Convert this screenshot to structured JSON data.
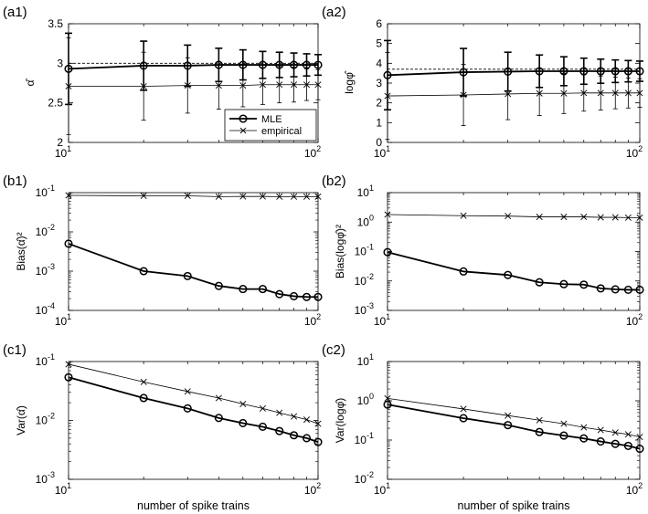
{
  "figure": {
    "xlabel": "number of spike trains"
  },
  "legend": {
    "entries": [
      {
        "label": "MLE",
        "marker": "circle",
        "line": "thick"
      },
      {
        "label": "empirical",
        "marker": "x",
        "line": "thin"
      }
    ]
  },
  "chart_data": [
    {
      "id": "a1",
      "label": "(a1)",
      "type": "line",
      "yscale": "linear",
      "ylabel": "α̂",
      "xlim": [
        10,
        100
      ],
      "ylim": [
        2,
        3.5
      ],
      "yticks": [
        {
          "v": 2,
          "t": "2"
        },
        {
          "v": 2.5,
          "t": "2.5"
        },
        {
          "v": 3,
          "t": "3"
        },
        {
          "v": 3.5,
          "t": "3.5"
        }
      ],
      "x": [
        10,
        20,
        30,
        40,
        50,
        60,
        70,
        80,
        90,
        100
      ],
      "true_value": 3.0,
      "series": [
        {
          "name": "MLE",
          "values": [
            2.93,
            2.97,
            2.97,
            2.98,
            2.98,
            2.98,
            2.98,
            2.98,
            2.98,
            2.98
          ],
          "err": [
            0.45,
            0.31,
            0.26,
            0.21,
            0.19,
            0.17,
            0.16,
            0.15,
            0.14,
            0.13
          ]
        },
        {
          "name": "empirical",
          "values": [
            2.71,
            2.71,
            2.72,
            2.72,
            2.72,
            2.73,
            2.73,
            2.73,
            2.73,
            2.73
          ],
          "err": [
            0.61,
            0.43,
            0.35,
            0.3,
            0.27,
            0.25,
            0.23,
            0.22,
            0.2,
            0.19
          ]
        }
      ]
    },
    {
      "id": "a2",
      "label": "(a2)",
      "type": "line",
      "yscale": "linear",
      "ylabel": "logφ̂",
      "xlim": [
        10,
        100
      ],
      "ylim": [
        0,
        6
      ],
      "yticks": [
        {
          "v": 0,
          "t": "0"
        },
        {
          "v": 1,
          "t": "1"
        },
        {
          "v": 2,
          "t": "2"
        },
        {
          "v": 3,
          "t": "3"
        },
        {
          "v": 4,
          "t": "4"
        },
        {
          "v": 5,
          "t": "5"
        },
        {
          "v": 6,
          "t": "6"
        }
      ],
      "x": [
        10,
        20,
        30,
        40,
        50,
        60,
        70,
        80,
        90,
        100
      ],
      "true_value": 3.7,
      "series": [
        {
          "name": "MLE",
          "values": [
            3.4,
            3.55,
            3.58,
            3.6,
            3.6,
            3.6,
            3.6,
            3.6,
            3.6,
            3.6
          ],
          "err": [
            1.75,
            1.2,
            0.98,
            0.82,
            0.73,
            0.66,
            0.61,
            0.57,
            0.54,
            0.51
          ]
        },
        {
          "name": "empirical",
          "values": [
            2.35,
            2.4,
            2.45,
            2.48,
            2.48,
            2.5,
            2.5,
            2.5,
            2.5,
            2.5
          ],
          "err": [
            2.2,
            1.55,
            1.3,
            1.12,
            1.02,
            0.92,
            0.86,
            0.8,
            0.76,
            0.72
          ]
        }
      ]
    },
    {
      "id": "b1",
      "label": "(b1)",
      "type": "line",
      "yscale": "log",
      "ylabel": "Bias(α̂)²",
      "xlim": [
        10,
        100
      ],
      "ylim": [
        -4,
        -1
      ],
      "yticks": [
        {
          "v": -4,
          "t": "-4"
        },
        {
          "v": -3,
          "t": "-3"
        },
        {
          "v": -2,
          "t": "-2"
        },
        {
          "v": -1,
          "t": "-1"
        }
      ],
      "x": [
        10,
        20,
        30,
        40,
        50,
        60,
        70,
        80,
        90,
        100
      ],
      "series": [
        {
          "name": "MLE",
          "values": [
            0.005,
            0.001,
            0.00075,
            0.00042,
            0.00035,
            0.00035,
            0.00026,
            0.00023,
            0.00022,
            0.00022
          ]
        },
        {
          "name": "empirical",
          "values": [
            0.085,
            0.083,
            0.083,
            0.079,
            0.08,
            0.08,
            0.079,
            0.079,
            0.079,
            0.079
          ]
        }
      ]
    },
    {
      "id": "b2",
      "label": "(b2)",
      "type": "line",
      "yscale": "log",
      "ylabel": "Bias(logφ̂)²",
      "xlim": [
        10,
        100
      ],
      "ylim": [
        -3,
        1
      ],
      "yticks": [
        {
          "v": -3,
          "t": "-3"
        },
        {
          "v": -2,
          "t": "-2"
        },
        {
          "v": -1,
          "t": "-1"
        },
        {
          "v": 0,
          "t": "0"
        },
        {
          "v": 1,
          "t": "1"
        }
      ],
      "x": [
        10,
        20,
        30,
        40,
        50,
        60,
        70,
        80,
        90,
        100
      ],
      "series": [
        {
          "name": "MLE",
          "values": [
            0.095,
            0.021,
            0.016,
            0.009,
            0.0078,
            0.0075,
            0.0056,
            0.0052,
            0.005,
            0.005
          ]
        },
        {
          "name": "empirical",
          "values": [
            1.8,
            1.65,
            1.6,
            1.5,
            1.5,
            1.5,
            1.45,
            1.45,
            1.42,
            1.42
          ]
        }
      ]
    },
    {
      "id": "c1",
      "label": "(c1)",
      "type": "line",
      "yscale": "log",
      "ylabel": "Var(α̂)",
      "xlim": [
        10,
        100
      ],
      "ylim": [
        -3,
        -1
      ],
      "yticks": [
        {
          "v": -3,
          "t": "-3"
        },
        {
          "v": -2,
          "t": "-2"
        },
        {
          "v": -1,
          "t": "-1"
        }
      ],
      "x": [
        10,
        20,
        30,
        40,
        50,
        60,
        70,
        80,
        90,
        100
      ],
      "series": [
        {
          "name": "MLE",
          "values": [
            0.054,
            0.024,
            0.016,
            0.011,
            0.009,
            0.0078,
            0.0066,
            0.0056,
            0.005,
            0.0043
          ]
        },
        {
          "name": "empirical",
          "values": [
            0.09,
            0.045,
            0.031,
            0.024,
            0.019,
            0.016,
            0.0135,
            0.0117,
            0.0103,
            0.0088
          ]
        }
      ]
    },
    {
      "id": "c2",
      "label": "(c2)",
      "type": "line",
      "yscale": "log",
      "ylabel": "Var(logφ̂)",
      "xlim": [
        10,
        100
      ],
      "ylim": [
        -2,
        1
      ],
      "yticks": [
        {
          "v": -2,
          "t": "-2"
        },
        {
          "v": -1,
          "t": "-1"
        },
        {
          "v": 0,
          "t": "0"
        },
        {
          "v": 1,
          "t": "1"
        }
      ],
      "x": [
        10,
        20,
        30,
        40,
        50,
        60,
        70,
        80,
        90,
        100
      ],
      "series": [
        {
          "name": "MLE",
          "values": [
            0.8,
            0.36,
            0.24,
            0.16,
            0.13,
            0.11,
            0.092,
            0.08,
            0.071,
            0.06
          ]
        },
        {
          "name": "empirical",
          "values": [
            1.15,
            0.62,
            0.42,
            0.32,
            0.26,
            0.21,
            0.18,
            0.155,
            0.14,
            0.12
          ]
        }
      ]
    }
  ]
}
